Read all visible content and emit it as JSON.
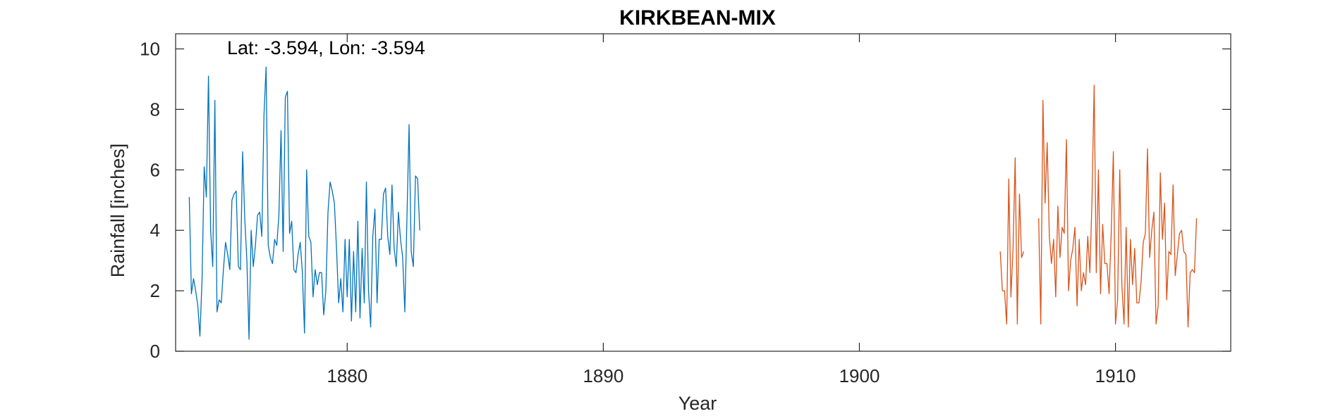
{
  "chart_data": {
    "type": "line",
    "title": "KIRKBEAN-MIX",
    "xlabel": "Year",
    "ylabel": "Rainfall [inches]",
    "annotation": "Lat: -3.594, Lon: -3.594",
    "xlim": [
      1873.3,
      1914.5
    ],
    "ylim": [
      0,
      10.5
    ],
    "xticks": [
      1880,
      1890,
      1900,
      1910
    ],
    "yticks": [
      0,
      2,
      4,
      6,
      8,
      10
    ],
    "grid": false,
    "series": [
      {
        "color": "#0072BD",
        "x_start": 1873.833,
        "x_step": 0.08333,
        "values": [
          5.1,
          1.9,
          2.4,
          2.0,
          1.5,
          0.5,
          2.4,
          6.1,
          5.1,
          9.1,
          4.0,
          2.8,
          8.3,
          1.3,
          1.7,
          1.6,
          2.7,
          3.6,
          3.2,
          2.7,
          5.0,
          5.2,
          5.3,
          2.8,
          2.7,
          6.6,
          4.4,
          3.0,
          0.4,
          4.0,
          2.8,
          3.5,
          4.5,
          4.6,
          3.8,
          7.8,
          9.4,
          3.5,
          3.1,
          2.9,
          3.7,
          3.5,
          4.5,
          7.3,
          3.3,
          8.4,
          8.6,
          3.9,
          4.3,
          2.7,
          2.6,
          3.2,
          3.6,
          2.6,
          0.6,
          6.0,
          3.8,
          3.6,
          1.8,
          2.7,
          2.2,
          2.6,
          2.6,
          1.2,
          2.0,
          4.6,
          5.6,
          5.3,
          4.9,
          3.4,
          1.6,
          2.4,
          1.3,
          3.7,
          1.8,
          3.7,
          1.0,
          3.3,
          1.3,
          4.3,
          1.1,
          3.4,
          1.6,
          5.6,
          2.0,
          0.8,
          3.8,
          4.7,
          1.6,
          3.7,
          3.7,
          5.2,
          5.4,
          3.8,
          3.2,
          5.5,
          3.4,
          2.8,
          4.6,
          3.7,
          3.1,
          1.3,
          4.4,
          7.5,
          3.3,
          2.8,
          5.8,
          5.7,
          4.0
        ]
      },
      {
        "color": "#D95319",
        "x_start": 1905.5,
        "x_step": 0.08333,
        "values": [
          3.3,
          2.0,
          2.0,
          0.9,
          5.7,
          1.8,
          3.4,
          6.4,
          0.9,
          5.2,
          3.1,
          3.3,
          null,
          null,
          null,
          null,
          null,
          null,
          4.4,
          0.9,
          8.3,
          4.9,
          6.9,
          3.8,
          2.9,
          3.7,
          1.8,
          4.8,
          3.1,
          4.1,
          3.9,
          7.0,
          2.0,
          3.0,
          3.4,
          4.1,
          1.5,
          3.7,
          2.0,
          2.6,
          2.2,
          3.8,
          2.6,
          5.0,
          8.8,
          2.6,
          6.0,
          1.9,
          4.2,
          2.9,
          2.9,
          1.9,
          3.9,
          6.6,
          0.9,
          1.7,
          6.0,
          2.2,
          0.9,
          4.1,
          0.8,
          3.7,
          2.2,
          3.4,
          1.6,
          1.6,
          2.3,
          3.6,
          3.9,
          6.7,
          3.1,
          4.0,
          4.6,
          0.9,
          1.5,
          5.9,
          3.7,
          4.9,
          1.7,
          3.3,
          3.2,
          5.5,
          2.5,
          3.2,
          3.9,
          4.0,
          3.3,
          3.2,
          0.8,
          2.6,
          2.7,
          2.6,
          4.4
        ]
      }
    ]
  }
}
